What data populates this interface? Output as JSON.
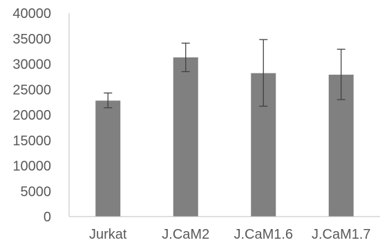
{
  "chart_data": {
    "type": "bar",
    "title": "",
    "xlabel": "",
    "ylabel": "",
    "categories": [
      "Jurkat",
      "J.CaM2",
      "J.CaM1.6",
      "J.CaM1.7"
    ],
    "values": [
      22800,
      31300,
      28200,
      27900
    ],
    "error_low": [
      21400,
      28500,
      21700,
      23000
    ],
    "error_high": [
      24300,
      34100,
      34800,
      32900
    ],
    "ylim": [
      0,
      40000
    ],
    "yticks": [
      0,
      5000,
      10000,
      15000,
      20000,
      25000,
      30000,
      35000,
      40000
    ],
    "grid": false,
    "legend": "none",
    "colors": {
      "bar": "#808080",
      "axis": "#bfbfbf",
      "error_bar": "#404040",
      "text": "#595959"
    }
  }
}
